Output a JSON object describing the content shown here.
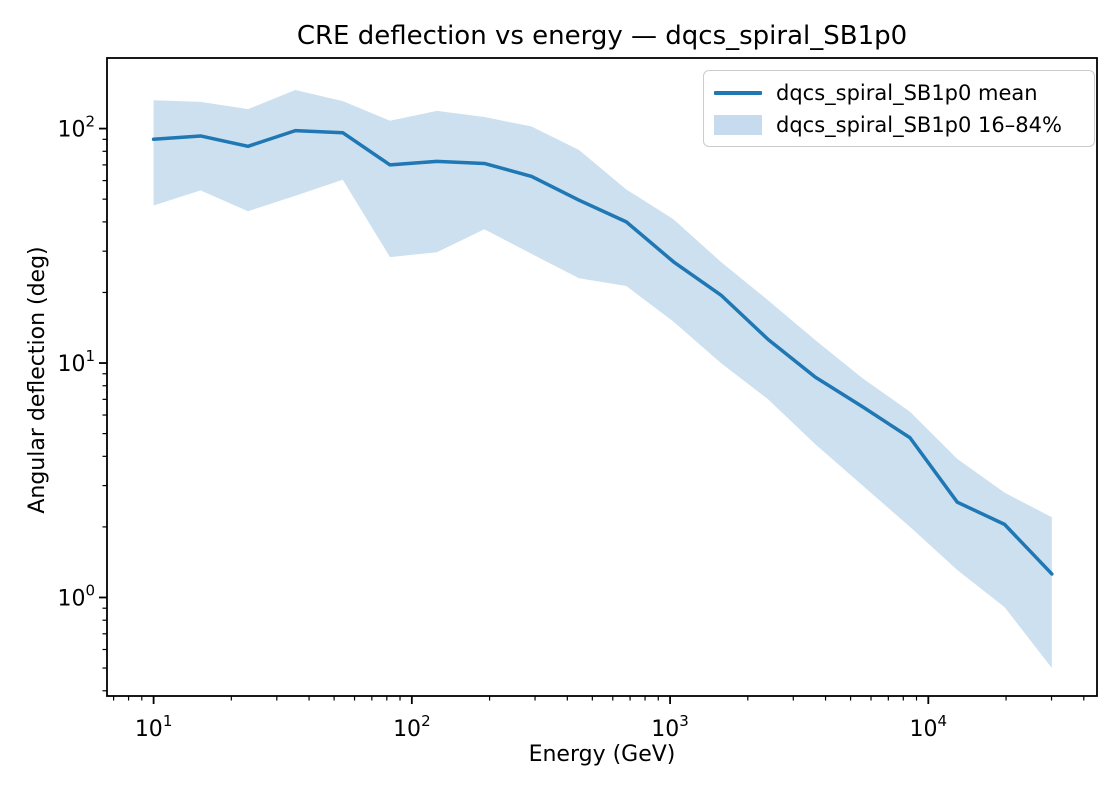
{
  "figure": {
    "title": "CRE deflection vs energy — dqcs_spiral_SB1p0",
    "xlabel": "Energy (GeV)",
    "ylabel": "Angular deflection (deg)"
  },
  "legend": {
    "entries": [
      {
        "label": "dqcs_spiral_SB1p0 mean",
        "type": "line"
      },
      {
        "label": "dqcs_spiral_SB1p0 16–84%",
        "type": "patch"
      }
    ],
    "position": "upper right"
  },
  "colors": {
    "line": "#1f77b4",
    "band_fill": "#cce0ef",
    "legend_patch": "#c6dbee",
    "spine": "#000000",
    "legend_border": "#cccccc"
  },
  "chart_data": {
    "type": "line",
    "title": "CRE deflection vs energy — dqcs_spiral_SB1p0",
    "xlabel": "Energy (GeV)",
    "ylabel": "Angular deflection (deg)",
    "x_scale": "log",
    "y_scale": "log",
    "grid": false,
    "legend_position": "upper right",
    "xlim": [
      6.6,
      45000
    ],
    "ylim": [
      0.38,
      200
    ],
    "x_ticks": [
      10,
      100,
      1000,
      10000
    ],
    "y_ticks": [
      1,
      10,
      100
    ],
    "x": [
      10,
      15.2,
      23.2,
      35.4,
      54,
      82.3,
      125,
      191,
      291,
      444,
      677,
      1032,
      1573,
      2398,
      3655,
      5572,
      8493,
      12946,
      19733,
      30079
    ],
    "series": [
      {
        "name": "dqcs_spiral_SB1p0 mean",
        "values": [
          90,
          93,
          84,
          98,
          96,
          70,
          72.5,
          71,
          62.5,
          49.5,
          40,
          27,
          19.5,
          12.6,
          8.7,
          6.5,
          4.8,
          2.55,
          2.05,
          1.26
        ]
      }
    ],
    "band": {
      "name": "dqcs_spiral_SB1p0 16–84%",
      "upper": [
        132,
        130,
        121,
        146,
        131,
        108,
        119,
        112,
        102,
        81,
        55,
        41,
        27,
        18.5,
        12.5,
        8.6,
        6.2,
        3.9,
        2.8,
        2.2
      ],
      "lower": [
        47,
        54.5,
        44.4,
        51.7,
        60.5,
        28.3,
        29.7,
        37.2,
        29.2,
        23,
        21.3,
        15,
        10,
        7,
        4.5,
        3,
        2,
        1.31,
        0.91,
        0.5
      ]
    }
  }
}
